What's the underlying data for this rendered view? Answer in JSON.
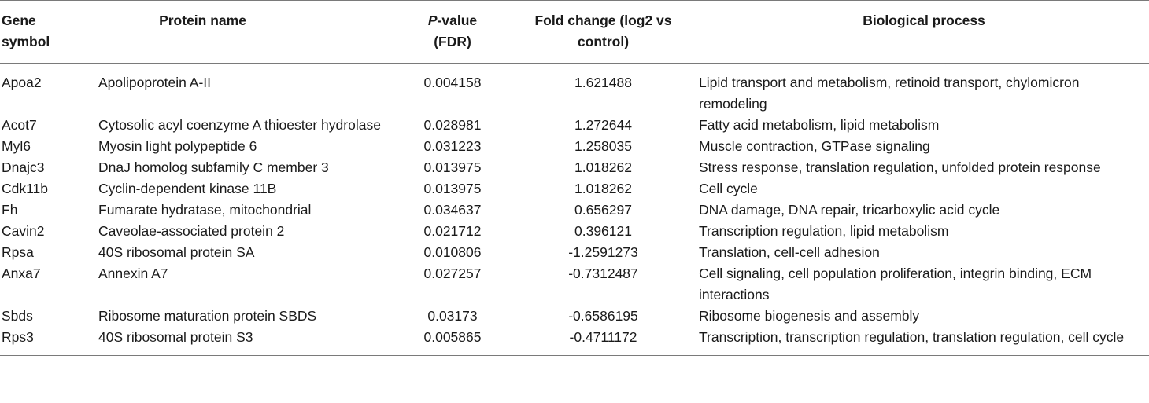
{
  "table": {
    "headers": {
      "gene_line1": "Gene",
      "gene_line2": "symbol",
      "protein": "Protein name",
      "pvalue_italic": "P",
      "pvalue_rest": "-value",
      "pvalue_line2": "(FDR)",
      "fold_line1": "Fold change (log2 vs",
      "fold_line2": "control)",
      "process": "Biological process"
    },
    "rows": [
      {
        "gene": "Apoa2",
        "protein": "Apolipoprotein A-II",
        "pvalue": "0.004158",
        "fold": "1.621488",
        "process": "Lipid transport and metabolism, retinoid transport, chylomicron remodeling"
      },
      {
        "gene": "Acot7",
        "protein": "Cytosolic acyl coenzyme A thioester hydrolase",
        "pvalue": "0.028981",
        "fold": "1.272644",
        "process": "Fatty acid metabolism, lipid metabolism"
      },
      {
        "gene": "Myl6",
        "protein": "Myosin light polypeptide 6",
        "pvalue": "0.031223",
        "fold": "1.258035",
        "process": "Muscle contraction, GTPase signaling"
      },
      {
        "gene": "Dnajc3",
        "protein": "DnaJ homolog subfamily C member 3",
        "pvalue": "0.013975",
        "fold": "1.018262",
        "process": "Stress response, translation regulation, unfolded protein response"
      },
      {
        "gene": "Cdk11b",
        "protein": "Cyclin-dependent kinase 11B",
        "pvalue": "0.013975",
        "fold": "1.018262",
        "process": "Cell cycle"
      },
      {
        "gene": "Fh",
        "protein": "Fumarate hydratase, mitochondrial",
        "pvalue": "0.034637",
        "fold": "0.656297",
        "process": "DNA damage, DNA repair, tricarboxylic acid cycle"
      },
      {
        "gene": "Cavin2",
        "protein": "Caveolae-associated protein 2",
        "pvalue": "0.021712",
        "fold": "0.396121",
        "process": "Transcription regulation, lipid metabolism"
      },
      {
        "gene": "Rpsa",
        "protein": "40S ribosomal protein SA",
        "pvalue": "0.010806",
        "fold": "-1.2591273",
        "process": "Translation, cell-cell adhesion"
      },
      {
        "gene": "Anxa7",
        "protein": "Annexin A7",
        "pvalue": "0.027257",
        "fold": "-0.7312487",
        "process": "Cell signaling, cell population proliferation, integrin binding, ECM interactions"
      },
      {
        "gene": "Sbds",
        "protein": "Ribosome maturation protein SBDS",
        "pvalue": "0.03173",
        "fold": "-0.6586195",
        "process": "Ribosome biogenesis and assembly"
      },
      {
        "gene": "Rps3",
        "protein": "40S ribosomal protein S3",
        "pvalue": "0.005865",
        "fold": "-0.4711172",
        "process": "Transcription, transcription regulation, translation regulation, cell cycle"
      }
    ]
  }
}
